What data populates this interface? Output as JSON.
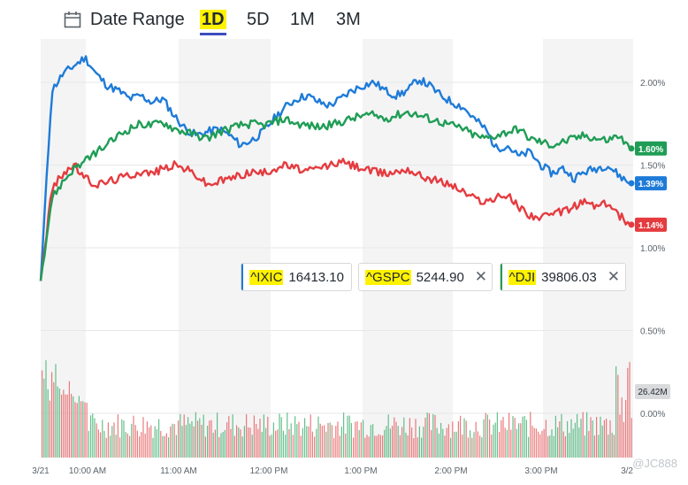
{
  "toolbar": {
    "date_range_label": "Date Range",
    "tabs": [
      {
        "label": "1D",
        "active": true
      },
      {
        "label": "5D",
        "active": false
      },
      {
        "label": "1M",
        "active": false
      },
      {
        "label": "3M",
        "active": false
      }
    ],
    "icon": "calendar-icon"
  },
  "legend": [
    {
      "symbol": "^IXIC",
      "value": "16413.10",
      "color": "#1e7bd8",
      "removable": false
    },
    {
      "symbol": "^GSPC",
      "value": "5244.90",
      "color": "#e53b3f",
      "removable": true
    },
    {
      "symbol": "^DJI",
      "value": "39806.03",
      "color": "#1f9d55",
      "removable": true
    }
  ],
  "watermark": "JC888",
  "chart_data": {
    "type": "line",
    "x_ticks": [
      "3/21",
      "10:00 AM",
      "11:00 AM",
      "12:00 PM",
      "1:00 PM",
      "2:00 PM",
      "3:00 PM",
      "3/2"
    ],
    "y_ticks": [
      "2.00%",
      "1.50%",
      "1.00%",
      "0.50%",
      "0.00%"
    ],
    "ylim": [
      -0.25,
      2.3
    ],
    "grid": true,
    "series": [
      {
        "name": "^IXIC",
        "color": "#1e7bd8",
        "last_label": "1.39%",
        "values": [
          0.8,
          1.95,
          2.05,
          2.1,
          2.15,
          2.05,
          1.98,
          1.95,
          1.9,
          1.92,
          1.88,
          1.9,
          1.8,
          1.72,
          1.68,
          1.7,
          1.72,
          1.68,
          1.62,
          1.65,
          1.7,
          1.78,
          1.85,
          1.9,
          1.92,
          1.88,
          1.86,
          1.9,
          1.95,
          1.98,
          2.0,
          1.95,
          1.92,
          1.95,
          2.02,
          1.98,
          1.92,
          1.88,
          1.85,
          1.78,
          1.72,
          1.6,
          1.62,
          1.55,
          1.58,
          1.5,
          1.45,
          1.48,
          1.42,
          1.46,
          1.48,
          1.5,
          1.44,
          1.39
        ]
      },
      {
        "name": "^GSPC",
        "color": "#e53b3f",
        "last_label": "1.14%",
        "values": [
          0.8,
          1.35,
          1.45,
          1.5,
          1.42,
          1.38,
          1.4,
          1.42,
          1.44,
          1.46,
          1.45,
          1.48,
          1.5,
          1.48,
          1.44,
          1.38,
          1.4,
          1.42,
          1.44,
          1.46,
          1.45,
          1.48,
          1.5,
          1.48,
          1.46,
          1.48,
          1.5,
          1.52,
          1.5,
          1.48,
          1.46,
          1.45,
          1.46,
          1.48,
          1.44,
          1.42,
          1.4,
          1.38,
          1.34,
          1.3,
          1.28,
          1.3,
          1.32,
          1.25,
          1.2,
          1.18,
          1.2,
          1.22,
          1.25,
          1.28,
          1.25,
          1.27,
          1.2,
          1.14
        ]
      },
      {
        "name": "^DJI",
        "color": "#1f9d55",
        "last_label": "1.60%",
        "values": [
          0.8,
          1.3,
          1.4,
          1.48,
          1.52,
          1.58,
          1.62,
          1.68,
          1.72,
          1.75,
          1.74,
          1.76,
          1.72,
          1.7,
          1.68,
          1.66,
          1.7,
          1.72,
          1.74,
          1.75,
          1.74,
          1.76,
          1.78,
          1.75,
          1.74,
          1.73,
          1.74,
          1.76,
          1.78,
          1.8,
          1.8,
          1.78,
          1.8,
          1.82,
          1.8,
          1.78,
          1.76,
          1.74,
          1.72,
          1.68,
          1.66,
          1.68,
          1.7,
          1.72,
          1.66,
          1.64,
          1.62,
          1.64,
          1.66,
          1.68,
          1.66,
          1.65,
          1.68,
          1.6
        ]
      }
    ],
    "volume_label": "26.42M",
    "annotations": [
      "2.00%",
      "1.60%",
      "1.39%",
      "1.14%"
    ]
  }
}
